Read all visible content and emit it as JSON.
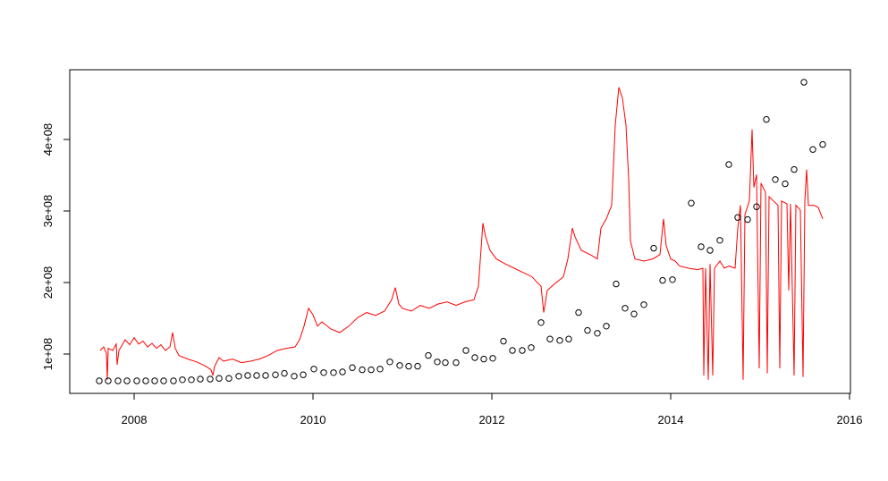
{
  "chart_data": {
    "type": "line",
    "xlim": [
      2007.28,
      2016.01
    ],
    "xticks": [
      2008,
      2010,
      2012,
      2014,
      2016
    ],
    "ylim": [
      45000000.0,
      497500000.0
    ],
    "yticks": [
      {
        "value": 100000000,
        "label": "1e+08"
      },
      {
        "value": 200000000,
        "label": "2e+08"
      },
      {
        "value": 300000000,
        "label": "3e+08"
      },
      {
        "value": 400000000,
        "label": "4e+08"
      }
    ],
    "series": [
      {
        "mode": "line",
        "color": "#ff0000",
        "x": [
          2007.62,
          2007.66,
          2007.69,
          2007.7,
          2007.71,
          2007.76,
          2007.8,
          2007.81,
          2007.83,
          2007.9,
          2007.95,
          2008.0,
          2008.05,
          2008.1,
          2008.15,
          2008.2,
          2008.25,
          2008.3,
          2008.35,
          2008.4,
          2008.43,
          2008.46,
          2008.5,
          2008.6,
          2008.7,
          2008.8,
          2008.86,
          2008.88,
          2008.9,
          2008.95,
          2009.0,
          2009.1,
          2009.2,
          2009.3,
          2009.4,
          2009.5,
          2009.6,
          2009.7,
          2009.8,
          2009.85,
          2009.9,
          2009.95,
          2010.0,
          2010.05,
          2010.1,
          2010.2,
          2010.3,
          2010.4,
          2010.5,
          2010.6,
          2010.7,
          2010.8,
          2010.88,
          2010.92,
          2010.96,
          2011.0,
          2011.1,
          2011.2,
          2011.3,
          2011.4,
          2011.5,
          2011.6,
          2011.7,
          2011.8,
          2011.85,
          2011.9,
          2011.93,
          2011.98,
          2012.05,
          2012.15,
          2012.25,
          2012.35,
          2012.45,
          2012.5,
          2012.55,
          2012.58,
          2012.62,
          2012.7,
          2012.8,
          2012.85,
          2012.9,
          2012.93,
          2013.0,
          2013.1,
          2013.18,
          2013.22,
          2013.28,
          2013.34,
          2013.38,
          2013.42,
          2013.46,
          2013.5,
          2013.53,
          2013.55,
          2013.6,
          2013.7,
          2013.8,
          2013.88,
          2013.92,
          2013.95,
          2014.0,
          2014.05,
          2014.1,
          2014.2,
          2014.3,
          2014.36,
          2014.37,
          2014.39,
          2014.42,
          2014.44,
          2014.47,
          2014.49,
          2014.55,
          2014.6,
          2014.65,
          2014.72,
          2014.75,
          2014.78,
          2014.81,
          2014.83,
          2014.88,
          2014.91,
          2014.93,
          2014.96,
          2014.99,
          2015.01,
          2015.06,
          2015.08,
          2015.1,
          2015.15,
          2015.2,
          2015.22,
          2015.24,
          2015.3,
          2015.32,
          2015.34,
          2015.38,
          2015.4,
          2015.45,
          2015.48,
          2015.5,
          2015.52,
          2015.54,
          2015.6,
          2015.65,
          2015.7
        ],
        "values": [
          105000000.0,
          110000000.0,
          101000000.0,
          64000000.0,
          108000000.0,
          105000000.0,
          114000000.0,
          85000000.0,
          105000000.0,
          120000000.0,
          113000000.0,
          123000000.0,
          114000000.0,
          118000000.0,
          110000000.0,
          115000000.0,
          108000000.0,
          113000000.0,
          105000000.0,
          110000000.0,
          130000000.0,
          108000000.0,
          98000000.0,
          93000000.0,
          89000000.0,
          83000000.0,
          78000000.0,
          70000000.0,
          83000000.0,
          95000000.0,
          90000000.0,
          93000000.0,
          88000000.0,
          90000000.0,
          93000000.0,
          98000000.0,
          105000000.0,
          108000000.0,
          110000000.0,
          120000000.0,
          139000000.0,
          164000000.0,
          155000000.0,
          139000000.0,
          145000000.0,
          135000000.0,
          130000000.0,
          139000000.0,
          151000000.0,
          158000000.0,
          154000000.0,
          160000000.0,
          176000000.0,
          193000000.0,
          170000000.0,
          164000000.0,
          160000000.0,
          168000000.0,
          164000000.0,
          170000000.0,
          173000000.0,
          168000000.0,
          173000000.0,
          176000000.0,
          195000000.0,
          283000000.0,
          264000000.0,
          245000000.0,
          233000000.0,
          226000000.0,
          220000000.0,
          214000000.0,
          208000000.0,
          201000000.0,
          195000000.0,
          158000000.0,
          189000000.0,
          198000000.0,
          208000000.0,
          233000000.0,
          276000000.0,
          264000000.0,
          245000000.0,
          239000000.0,
          233000000.0,
          276000000.0,
          289000000.0,
          308000000.0,
          420000000.0,
          473000000.0,
          458000000.0,
          420000000.0,
          345000000.0,
          258000000.0,
          233000000.0,
          230000000.0,
          233000000.0,
          239000000.0,
          289000000.0,
          251000000.0,
          233000000.0,
          230000000.0,
          223000000.0,
          220000000.0,
          218000000.0,
          220000000.0,
          70000000.0,
          220000000.0,
          64000000.0,
          226000000.0,
          70000000.0,
          220000000.0,
          230000000.0,
          220000000.0,
          223000000.0,
          220000000.0,
          276000000.0,
          308000000.0,
          64000000.0,
          295000000.0,
          314000000.0,
          414000000.0,
          333000000.0,
          351000000.0,
          80000000.0,
          339000000.0,
          326000000.0,
          73000000.0,
          320000000.0,
          314000000.0,
          308000000.0,
          80000000.0,
          314000000.0,
          310000000.0,
          189000000.0,
          310000000.0,
          70000000.0,
          308000000.0,
          301000000.0,
          68000000.0,
          314000000.0,
          358000000.0,
          308000000.0,
          308000000.0,
          305000000.0,
          289000000.0
        ]
      },
      {
        "mode": "points",
        "color": "#000000",
        "x": [
          2007.61,
          2007.71,
          2007.82,
          2007.92,
          2008.03,
          2008.13,
          2008.23,
          2008.33,
          2008.44,
          2008.54,
          2008.64,
          2008.74,
          2008.85,
          2008.95,
          2009.06,
          2009.17,
          2009.27,
          2009.37,
          2009.47,
          2009.58,
          2009.68,
          2009.79,
          2009.89,
          2010.01,
          2010.12,
          2010.23,
          2010.33,
          2010.44,
          2010.55,
          2010.65,
          2010.75,
          2010.86,
          2010.97,
          2011.07,
          2011.17,
          2011.29,
          2011.39,
          2011.48,
          2011.6,
          2011.71,
          2011.81,
          2011.91,
          2012.01,
          2012.13,
          2012.23,
          2012.34,
          2012.44,
          2012.55,
          2012.65,
          2012.76,
          2012.86,
          2012.97,
          2013.07,
          2013.18,
          2013.28,
          2013.39,
          2013.49,
          2013.59,
          2013.7,
          2013.81,
          2013.91,
          2014.02,
          2014.23,
          2014.34,
          2014.44,
          2014.55,
          2014.65,
          2014.75,
          2014.86,
          2014.96,
          2015.07,
          2015.17,
          2015.28,
          2015.38,
          2015.49,
          2015.59,
          2015.7
        ],
        "values": [
          62500000.0,
          62500000.0,
          62500000.0,
          62500000.0,
          62500000.0,
          62500000.0,
          62500000.0,
          62500000.0,
          62500000.0,
          64000000.0,
          64000000.0,
          65000000.0,
          65000000.0,
          66000000.0,
          66000000.0,
          69000000.0,
          70000000.0,
          70000000.0,
          70000000.0,
          71000000.0,
          73000000.0,
          69000000.0,
          71000000.0,
          79000000.0,
          74000000.0,
          74000000.0,
          75000000.0,
          81000000.0,
          78000000.0,
          78000000.0,
          79000000.0,
          89000000.0,
          84000000.0,
          83000000.0,
          83000000.0,
          98000000.0,
          89000000.0,
          88000000.0,
          88000000.0,
          105000000.0,
          95000000.0,
          93000000.0,
          94000000.0,
          118000000.0,
          105000000.0,
          105000000.0,
          109000000.0,
          144000000.0,
          121000000.0,
          119000000.0,
          121000000.0,
          158000000.0,
          133000000.0,
          129000000.0,
          139000000.0,
          198000000.0,
          164000000.0,
          156000000.0,
          169000000.0,
          248000000.0,
          203000000.0,
          204000000.0,
          311000000.0,
          250000000.0,
          245000000.0,
          259000000.0,
          365000000.0,
          291000000.0,
          288000000.0,
          306000000.0,
          428000000.0,
          344000000.0,
          338000000.0,
          358000000.0,
          480000000.0,
          386000000.0,
          393000000.0
        ]
      }
    ]
  }
}
